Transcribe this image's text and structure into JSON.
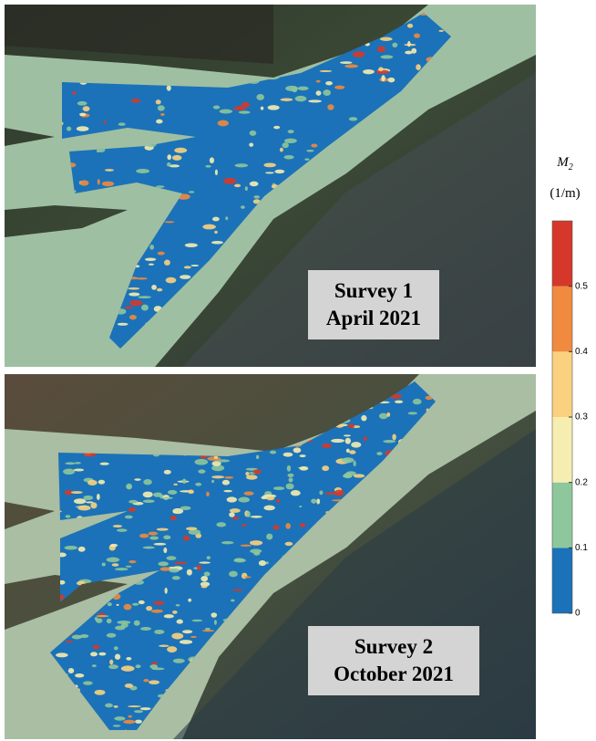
{
  "panels": [
    {
      "line1": "Survey 1",
      "line2": "April 2021"
    },
    {
      "line1": "Survey 2",
      "line2": "October 2021"
    }
  ],
  "colorbar": {
    "title": "M",
    "title_subscript": "2",
    "unit": "(1/m)",
    "range": [
      0,
      0.6
    ],
    "ticks": [
      0,
      0.1,
      0.2,
      0.3,
      0.4,
      0.5
    ],
    "colors": [
      "#1b72b8",
      "#8ec79b",
      "#f6edb0",
      "#fad27f",
      "#f08a3e",
      "#d5382a"
    ]
  }
}
